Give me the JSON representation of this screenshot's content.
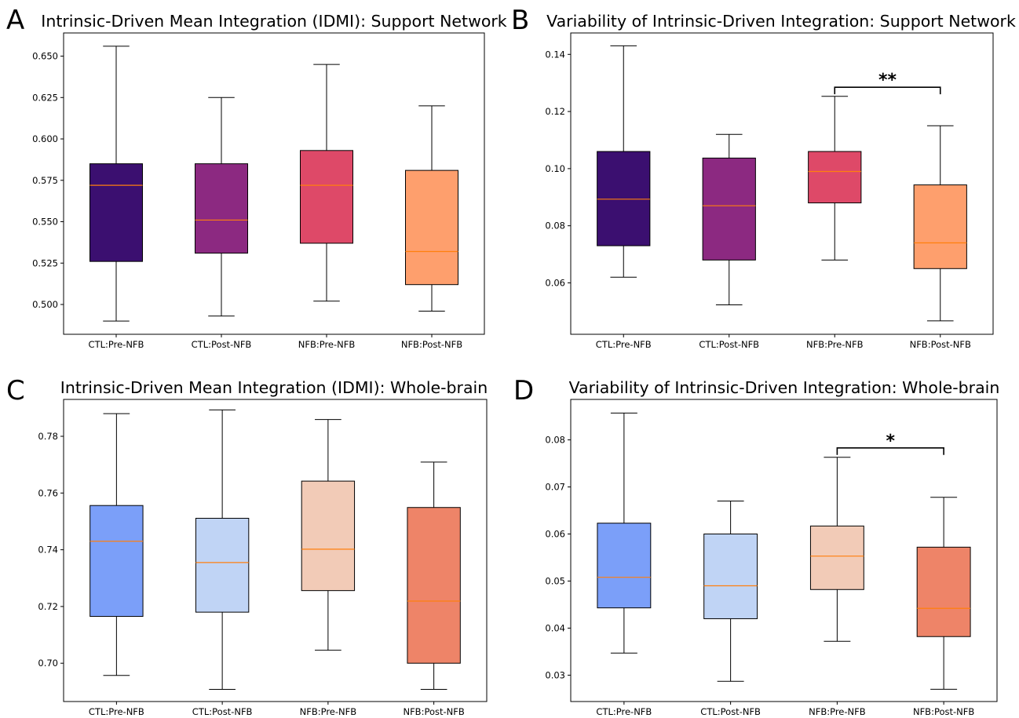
{
  "panels": [
    {
      "letter": "A",
      "title": "Intrinsic-Driven Mean Integration (IDMI): Support Network"
    },
    {
      "letter": "B",
      "title": "Variability of Intrinsic-Driven Integration: Support Network"
    },
    {
      "letter": "C",
      "title": "Intrinsic-Driven Mean Integration (IDMI): Whole-brain"
    },
    {
      "letter": "D",
      "title": "Variability of Intrinsic-Driven Integration: Whole-brain"
    }
  ],
  "chart_data": [
    {
      "type": "box",
      "panel": "A",
      "title": "Intrinsic-Driven Mean Integration (IDMI): Support Network",
      "categories": [
        "CTL:Pre-NFB",
        "CTL:Post-NFB",
        "NFB:Pre-NFB",
        "NFB:Post-NFB"
      ],
      "ylim": [
        0.482,
        0.664
      ],
      "yticks": [
        0.5,
        0.525,
        0.55,
        0.575,
        0.6,
        0.625,
        0.65
      ],
      "ytick_labels": [
        "0.500",
        "0.525",
        "0.550",
        "0.575",
        "0.600",
        "0.625",
        "0.650"
      ],
      "boxes": [
        {
          "whislo": 0.49,
          "q1": 0.526,
          "med": 0.572,
          "q3": 0.585,
          "whishi": 0.656
        },
        {
          "whislo": 0.493,
          "q1": 0.531,
          "med": 0.551,
          "q3": 0.585,
          "whishi": 0.625
        },
        {
          "whislo": 0.502,
          "q1": 0.537,
          "med": 0.572,
          "q3": 0.593,
          "whishi": 0.645
        },
        {
          "whislo": 0.496,
          "q1": 0.512,
          "med": 0.532,
          "q3": 0.581,
          "whishi": 0.62
        }
      ],
      "colors": [
        "#3b0f70",
        "#8c2981",
        "#de4968",
        "#fe9f6d"
      ],
      "median_color": "#ff7f0e",
      "significance": []
    },
    {
      "type": "box",
      "panel": "B",
      "title": "Variability of Intrinsic-Driven Integration: Support Network",
      "categories": [
        "CTL:Pre-NFB",
        "CTL:Post-NFB",
        "NFB:Pre-NFB",
        "NFB:Post-NFB"
      ],
      "ylim": [
        0.042,
        0.1475
      ],
      "yticks": [
        0.06,
        0.08,
        0.1,
        0.12,
        0.14
      ],
      "ytick_labels": [
        "0.06",
        "0.08",
        "0.10",
        "0.12",
        "0.14"
      ],
      "boxes": [
        {
          "whislo": 0.062,
          "q1": 0.073,
          "med": 0.0893,
          "q3": 0.106,
          "whishi": 0.143
        },
        {
          "whislo": 0.0523,
          "q1": 0.068,
          "med": 0.087,
          "q3": 0.1037,
          "whishi": 0.112
        },
        {
          "whislo": 0.068,
          "q1": 0.088,
          "med": 0.099,
          "q3": 0.106,
          "whishi": 0.1253
        },
        {
          "whislo": 0.0467,
          "q1": 0.065,
          "med": 0.074,
          "q3": 0.0943,
          "whishi": 0.115
        }
      ],
      "colors": [
        "#3b0f70",
        "#8c2981",
        "#de4968",
        "#fe9f6d"
      ],
      "median_color": "#ff7f0e",
      "significance": [
        {
          "from": 2,
          "to": 3,
          "label": "**",
          "y": 0.1285
        }
      ]
    },
    {
      "type": "box",
      "panel": "C",
      "title": "Intrinsic-Driven Mean Integration (IDMI): Whole-brain",
      "categories": [
        "CTL:Pre-NFB",
        "CTL:Post-NFB",
        "NFB:Pre-NFB",
        "NFB:Post-NFB"
      ],
      "ylim": [
        0.6865,
        0.793
      ],
      "yticks": [
        0.7,
        0.72,
        0.74,
        0.76,
        0.78
      ],
      "ytick_labels": [
        "0.70",
        "0.72",
        "0.74",
        "0.76",
        "0.78"
      ],
      "boxes": [
        {
          "whislo": 0.6957,
          "q1": 0.7165,
          "med": 0.743,
          "q3": 0.7556,
          "whishi": 0.788
        },
        {
          "whislo": 0.6908,
          "q1": 0.718,
          "med": 0.7355,
          "q3": 0.7511,
          "whishi": 0.7893
        },
        {
          "whislo": 0.7046,
          "q1": 0.7256,
          "med": 0.7402,
          "q3": 0.7642,
          "whishi": 0.7859
        },
        {
          "whislo": 0.6908,
          "q1": 0.7,
          "med": 0.7219,
          "q3": 0.7549,
          "whishi": 0.7709
        }
      ],
      "colors": [
        "#7b9ff9",
        "#c0d4f5",
        "#f2cbb7",
        "#ee8468"
      ],
      "median_color": "#ff7f0e",
      "significance": []
    },
    {
      "type": "box",
      "panel": "D",
      "title": "Variability of Intrinsic-Driven Integration: Whole-brain",
      "categories": [
        "CTL:Pre-NFB",
        "CTL:Post-NFB",
        "NFB:Pre-NFB",
        "NFB:Post-NFB"
      ],
      "ylim": [
        0.0244,
        0.0886
      ],
      "yticks": [
        0.03,
        0.04,
        0.05,
        0.06,
        0.07,
        0.08
      ],
      "ytick_labels": [
        "0.03",
        "0.04",
        "0.05",
        "0.06",
        "0.07",
        "0.08"
      ],
      "boxes": [
        {
          "whislo": 0.0347,
          "q1": 0.0443,
          "med": 0.0508,
          "q3": 0.0623,
          "whishi": 0.0857
        },
        {
          "whislo": 0.0287,
          "q1": 0.042,
          "med": 0.049,
          "q3": 0.06,
          "whishi": 0.067
        },
        {
          "whislo": 0.0372,
          "q1": 0.0482,
          "med": 0.0553,
          "q3": 0.0617,
          "whishi": 0.0763
        },
        {
          "whislo": 0.027,
          "q1": 0.0382,
          "med": 0.0442,
          "q3": 0.0572,
          "whishi": 0.0678
        }
      ],
      "colors": [
        "#7b9ff9",
        "#c0d4f5",
        "#f2cbb7",
        "#ee8468"
      ],
      "median_color": "#ff7f0e",
      "significance": [
        {
          "from": 2,
          "to": 3,
          "label": "*",
          "y": 0.0783
        }
      ]
    }
  ]
}
